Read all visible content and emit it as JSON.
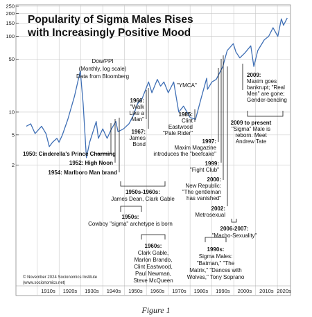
{
  "chart_data": {
    "type": "line",
    "title_lines": [
      "Popularity of Sigma Males Rises",
      "with Increasingly Positive Mood"
    ],
    "series_label_lines": [
      "Dow/PPI",
      "(Monthly, log scale)",
      "Data from Bloomberg"
    ],
    "yscale": "log",
    "ylim": [
      1.6,
      250
    ],
    "xlim": [
      1905,
      2026
    ],
    "y_ticks": [
      "250",
      "200",
      "150",
      "100",
      "50",
      "10",
      "5",
      "2"
    ],
    "y_tick_values": [
      250,
      200,
      150,
      100,
      50,
      10,
      5,
      2
    ],
    "decade_labels": [
      "1910s",
      "1920s",
      "1930s",
      "1940s",
      "1950s",
      "1960s",
      "1970s",
      "1980s",
      "1990s",
      "2000s",
      "2010s",
      "2020s"
    ],
    "grid": true,
    "series": [
      {
        "x": [
          1905,
          1907,
          1909,
          1912,
          1914,
          1915.5,
          1917,
          1919,
          1920,
          1921.5,
          1924,
          1927,
          1929.7,
          1931,
          1932.5,
          1934,
          1937,
          1938,
          1940,
          1942,
          1944,
          1946,
          1947,
          1949.5,
          1952,
          1954,
          1956,
          1958,
          1961,
          1962.5,
          1965,
          1966.5,
          1968,
          1970,
          1972.5,
          1974.8,
          1977,
          1980,
          1982.5,
          1985,
          1987.6,
          1988,
          1990,
          1992,
          1995,
          1997,
          1999.8,
          2001,
          2002.8,
          2005,
          2007.8,
          2009.2,
          2011,
          2014,
          2016,
          2018,
          2020.2,
          2021.8,
          2022.8,
          2024.5
        ],
        "y": [
          6.5,
          7,
          5.2,
          6.5,
          5.2,
          3.5,
          4,
          4.5,
          4,
          5,
          8,
          16,
          35,
          13,
          2.5,
          4,
          7.5,
          4.5,
          6,
          4.5,
          6,
          7.5,
          5.5,
          6,
          7,
          9,
          13,
          15,
          25,
          18,
          27,
          22,
          25,
          18,
          25,
          10,
          12,
          8.5,
          8,
          15,
          28,
          20,
          25,
          27,
          40,
          65,
          80,
          62,
          52,
          60,
          75,
          40,
          65,
          90,
          100,
          130,
          100,
          170,
          140,
          175
        ]
      }
    ]
  },
  "annotations": [
    {
      "lines": [
        "1950: Cinderella's Prince Charming"
      ]
    },
    {
      "lines": [
        "1952: High Noon"
      ]
    },
    {
      "lines": [
        "1954: Marlboro Man brand"
      ]
    },
    {
      "lines": [
        "1966:",
        "\"Walk",
        "Like a",
        "Man\""
      ]
    },
    {
      "lines": [
        "1967:",
        "James",
        "Bond"
      ]
    },
    {
      "lines": [
        "\"YMCA\""
      ]
    },
    {
      "lines": [
        "1985:",
        "Clint",
        "Eastwood",
        "\"Pale Rider\""
      ]
    },
    {
      "lines": [
        "1997:",
        "Maxim Magazine",
        "introduces the \"beefcake\""
      ]
    },
    {
      "lines": [
        "1999:",
        "\"Fight Club\""
      ]
    },
    {
      "lines": [
        "2000:",
        "New Republic:",
        "\"The gentleman",
        "has vanished\""
      ]
    },
    {
      "lines": [
        "2002:",
        "Metrosexual"
      ]
    },
    {
      "lines": [
        "2009:",
        "Maxim goes",
        "bankrupt; \"Real",
        "Men\" are gone;",
        "Gender-bending"
      ]
    },
    {
      "lines": [
        "2009 to present",
        "\"Sigma\" Male is",
        "reborn. Meet",
        "Andrew Tate"
      ]
    },
    {
      "lines": [
        "1950s-1960s:",
        "James Dean, Clark Gable"
      ]
    },
    {
      "lines": [
        "1950s:",
        "Cowboy \"sigma\" archetype is born"
      ]
    },
    {
      "lines": [
        "2006-2007:",
        "\"Macho-Sexuality\""
      ]
    },
    {
      "lines": [
        "1960s:",
        "Clark Gable,",
        "Marlon Brando,",
        "Clint Eastwood,",
        "Paul Newman,",
        "Steve McQueen"
      ]
    },
    {
      "lines": [
        "1990s:",
        "Sigma Males:",
        "\"Batman,\" \"The",
        "Matrix,\" \"Dances with",
        "Wolves,\" Tony Soprano"
      ]
    }
  ],
  "copyright_lines": [
    "© November 2024 Socionomics Institute",
    "(www.socionomics.net)"
  ],
  "caption": "Figure 1",
  "colors": {
    "line": "#3f6fb5",
    "grid": "#c9c9c9",
    "text": "#111111"
  }
}
